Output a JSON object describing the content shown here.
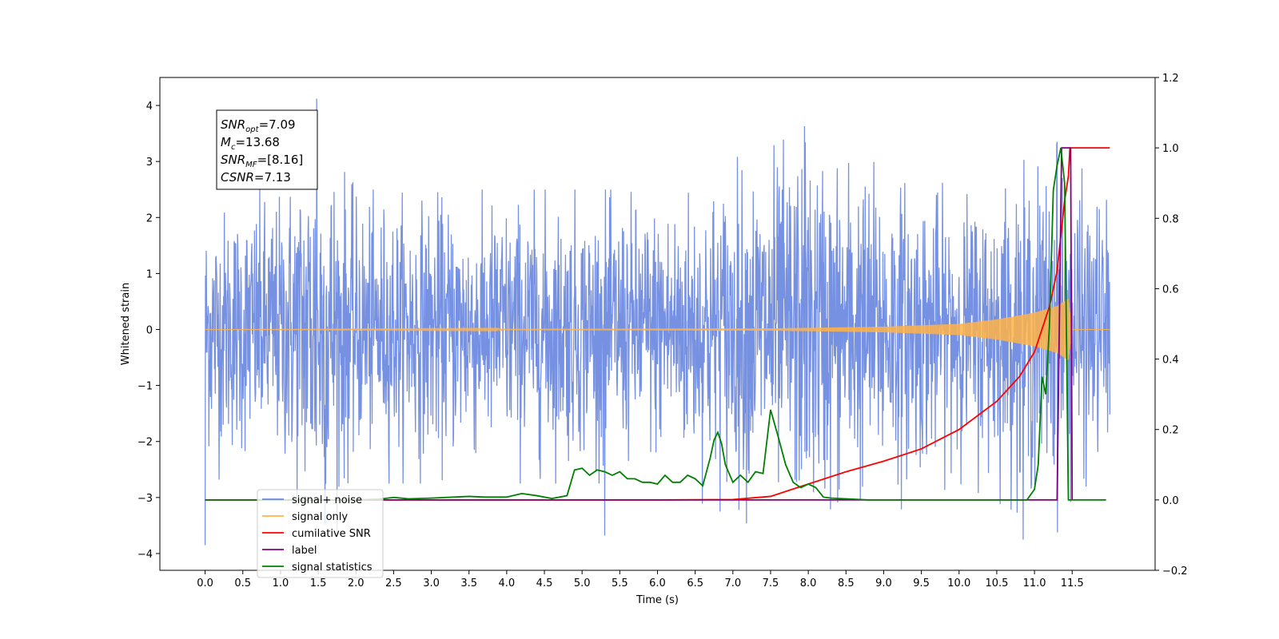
{
  "chart_data": {
    "type": "line",
    "title": "",
    "xlabel": "Time (s)",
    "ylabel_left": "Whitened strain",
    "ylabel_right": "",
    "xlim": [
      -0.6,
      12.6
    ],
    "ylim_left": [
      -4.3,
      4.5
    ],
    "ylim_right": [
      -0.2,
      1.2
    ],
    "x_ticks": [
      0.0,
      0.5,
      1.0,
      1.5,
      2.0,
      2.5,
      3.0,
      3.5,
      4.0,
      4.5,
      5.0,
      5.5,
      6.0,
      6.5,
      7.0,
      7.5,
      8.0,
      8.5,
      9.0,
      9.5,
      10.0,
      10.5,
      11.0,
      11.5
    ],
    "x_tick_labels": [
      "0.0",
      "0.5",
      "1.0",
      "1.5",
      "2.0",
      "2.5",
      "3.0",
      "3.5",
      "4.0",
      "4.5",
      "5.0",
      "5.5",
      "6.0",
      "6.5",
      "7.0",
      "7.5",
      "8.0",
      "8.5",
      "9.0",
      "9.5",
      "10.0",
      "10.5",
      "11.0",
      "11.5"
    ],
    "y_left_ticks": [
      -4,
      -3,
      -2,
      -1,
      0,
      1,
      2,
      3,
      4
    ],
    "y_left_tick_labels": [
      "−4",
      "−3",
      "−2",
      "−1",
      "0",
      "1",
      "2",
      "3",
      "4"
    ],
    "y_right_ticks": [
      -0.2,
      0.0,
      0.2,
      0.4,
      0.6,
      0.8,
      1.0,
      1.2
    ],
    "y_right_tick_labels": [
      "−0.2",
      "0.0",
      "0.2",
      "0.4",
      "0.6",
      "0.8",
      "1.0",
      "1.2"
    ],
    "annotation": {
      "lines": [
        {
          "sym": "SNR",
          "sub": "opt",
          "value": "=7.09"
        },
        {
          "sym": "M",
          "sub": "c",
          "value": "=13.68"
        },
        {
          "sym": "SNR",
          "sub": "MF",
          "value": "=[8.16]"
        },
        {
          "sym": "CSNR",
          "sub": "",
          "value": "=7.13"
        }
      ]
    },
    "legend": {
      "placement": "lower-left",
      "entries": [
        {
          "label": "signal+ noise",
          "color": "#6a88e0"
        },
        {
          "label": "signal only",
          "color": "#ffb347"
        },
        {
          "label": "cumilative SNR",
          "color": "#ff0000"
        },
        {
          "label": "label",
          "color": "#800080"
        },
        {
          "label": "signal statistics",
          "color": "#008000"
        }
      ]
    },
    "series": [
      {
        "name": "signal+ noise",
        "axis": "left",
        "color": "#6a88e0",
        "x_range": [
          0.0,
          12.0
        ],
        "envelope": [
          [
            0.0,
            2.4
          ],
          [
            1.0,
            2.6
          ],
          [
            1.5,
            4.1
          ],
          [
            2.0,
            2.5
          ],
          [
            4.0,
            2.5
          ],
          [
            6.0,
            2.5
          ],
          [
            8.0,
            3.6
          ],
          [
            10.0,
            2.5
          ],
          [
            11.3,
            3.3
          ],
          [
            12.0,
            2.4
          ]
        ],
        "extremes": [
          {
            "x": 0.0,
            "y": -3.85
          },
          {
            "x": 1.48,
            "y": 4.12
          },
          {
            "x": 5.3,
            "y": -3.68
          },
          {
            "x": 7.95,
            "y": 3.63
          },
          {
            "x": 10.85,
            "y": -3.75
          },
          {
            "x": 11.3,
            "y": 3.35
          }
        ]
      },
      {
        "name": "signal only",
        "axis": "left",
        "color": "#ffb347",
        "x_range": [
          0.0,
          12.0
        ],
        "amplitude": [
          [
            0.0,
            0.0
          ],
          [
            7.5,
            0.02
          ],
          [
            9.0,
            0.05
          ],
          [
            10.0,
            0.1
          ],
          [
            10.5,
            0.18
          ],
          [
            11.0,
            0.3
          ],
          [
            11.3,
            0.42
          ],
          [
            11.45,
            0.55
          ],
          [
            11.5,
            0.0
          ],
          [
            12.0,
            0.0
          ]
        ]
      },
      {
        "name": "cumilative SNR",
        "axis": "right",
        "color": "#ff0000",
        "x": [
          0.0,
          6.0,
          7.0,
          7.5,
          8.0,
          8.5,
          9.0,
          9.5,
          10.0,
          10.5,
          10.8,
          11.0,
          11.2,
          11.3,
          11.35,
          11.4,
          11.45,
          11.47,
          12.0
        ],
        "y": [
          0.0,
          0.0,
          0.001,
          0.01,
          0.045,
          0.08,
          0.11,
          0.145,
          0.2,
          0.28,
          0.35,
          0.42,
          0.55,
          0.65,
          0.75,
          0.85,
          0.92,
          1.0,
          1.0
        ]
      },
      {
        "name": "label",
        "axis": "right",
        "color": "#800080",
        "x": [
          0.0,
          11.3,
          11.36,
          11.48,
          11.5
        ],
        "y": [
          0.0,
          0.0,
          1.0,
          1.0,
          0.0
        ]
      },
      {
        "name": "signal statistics",
        "axis": "right",
        "color": "#008000",
        "x": [
          0.0,
          2.0,
          2.3,
          2.5,
          2.7,
          3.0,
          3.5,
          3.7,
          4.0,
          4.2,
          4.4,
          4.6,
          4.8,
          4.9,
          5.0,
          5.1,
          5.2,
          5.3,
          5.4,
          5.5,
          5.6,
          5.7,
          5.8,
          5.9,
          6.0,
          6.1,
          6.2,
          6.3,
          6.4,
          6.5,
          6.6,
          6.7,
          6.75,
          6.8,
          6.85,
          6.9,
          7.0,
          7.1,
          7.2,
          7.3,
          7.4,
          7.5,
          7.6,
          7.7,
          7.8,
          7.9,
          8.0,
          8.1,
          8.2,
          8.3,
          8.5,
          8.8,
          9.0,
          10.9,
          11.0,
          11.05,
          11.1,
          11.15,
          11.2,
          11.25,
          11.3,
          11.35,
          11.4,
          11.45,
          11.5,
          11.6,
          11.95
        ],
        "y": [
          0.0,
          0.0,
          0.002,
          0.007,
          0.003,
          0.005,
          0.01,
          0.008,
          0.008,
          0.018,
          0.012,
          0.004,
          0.012,
          0.085,
          0.09,
          0.07,
          0.085,
          0.08,
          0.07,
          0.08,
          0.06,
          0.06,
          0.05,
          0.05,
          0.045,
          0.07,
          0.05,
          0.05,
          0.07,
          0.06,
          0.04,
          0.12,
          0.17,
          0.192,
          0.16,
          0.1,
          0.05,
          0.07,
          0.05,
          0.08,
          0.075,
          0.256,
          0.18,
          0.1,
          0.05,
          0.035,
          0.045,
          0.035,
          0.008,
          0.005,
          0.003,
          0.0,
          0.0,
          0.0,
          0.03,
          0.1,
          0.35,
          0.3,
          0.5,
          0.88,
          0.95,
          1.0,
          0.9,
          0.0,
          0.0,
          0.0,
          0.0
        ]
      }
    ]
  }
}
